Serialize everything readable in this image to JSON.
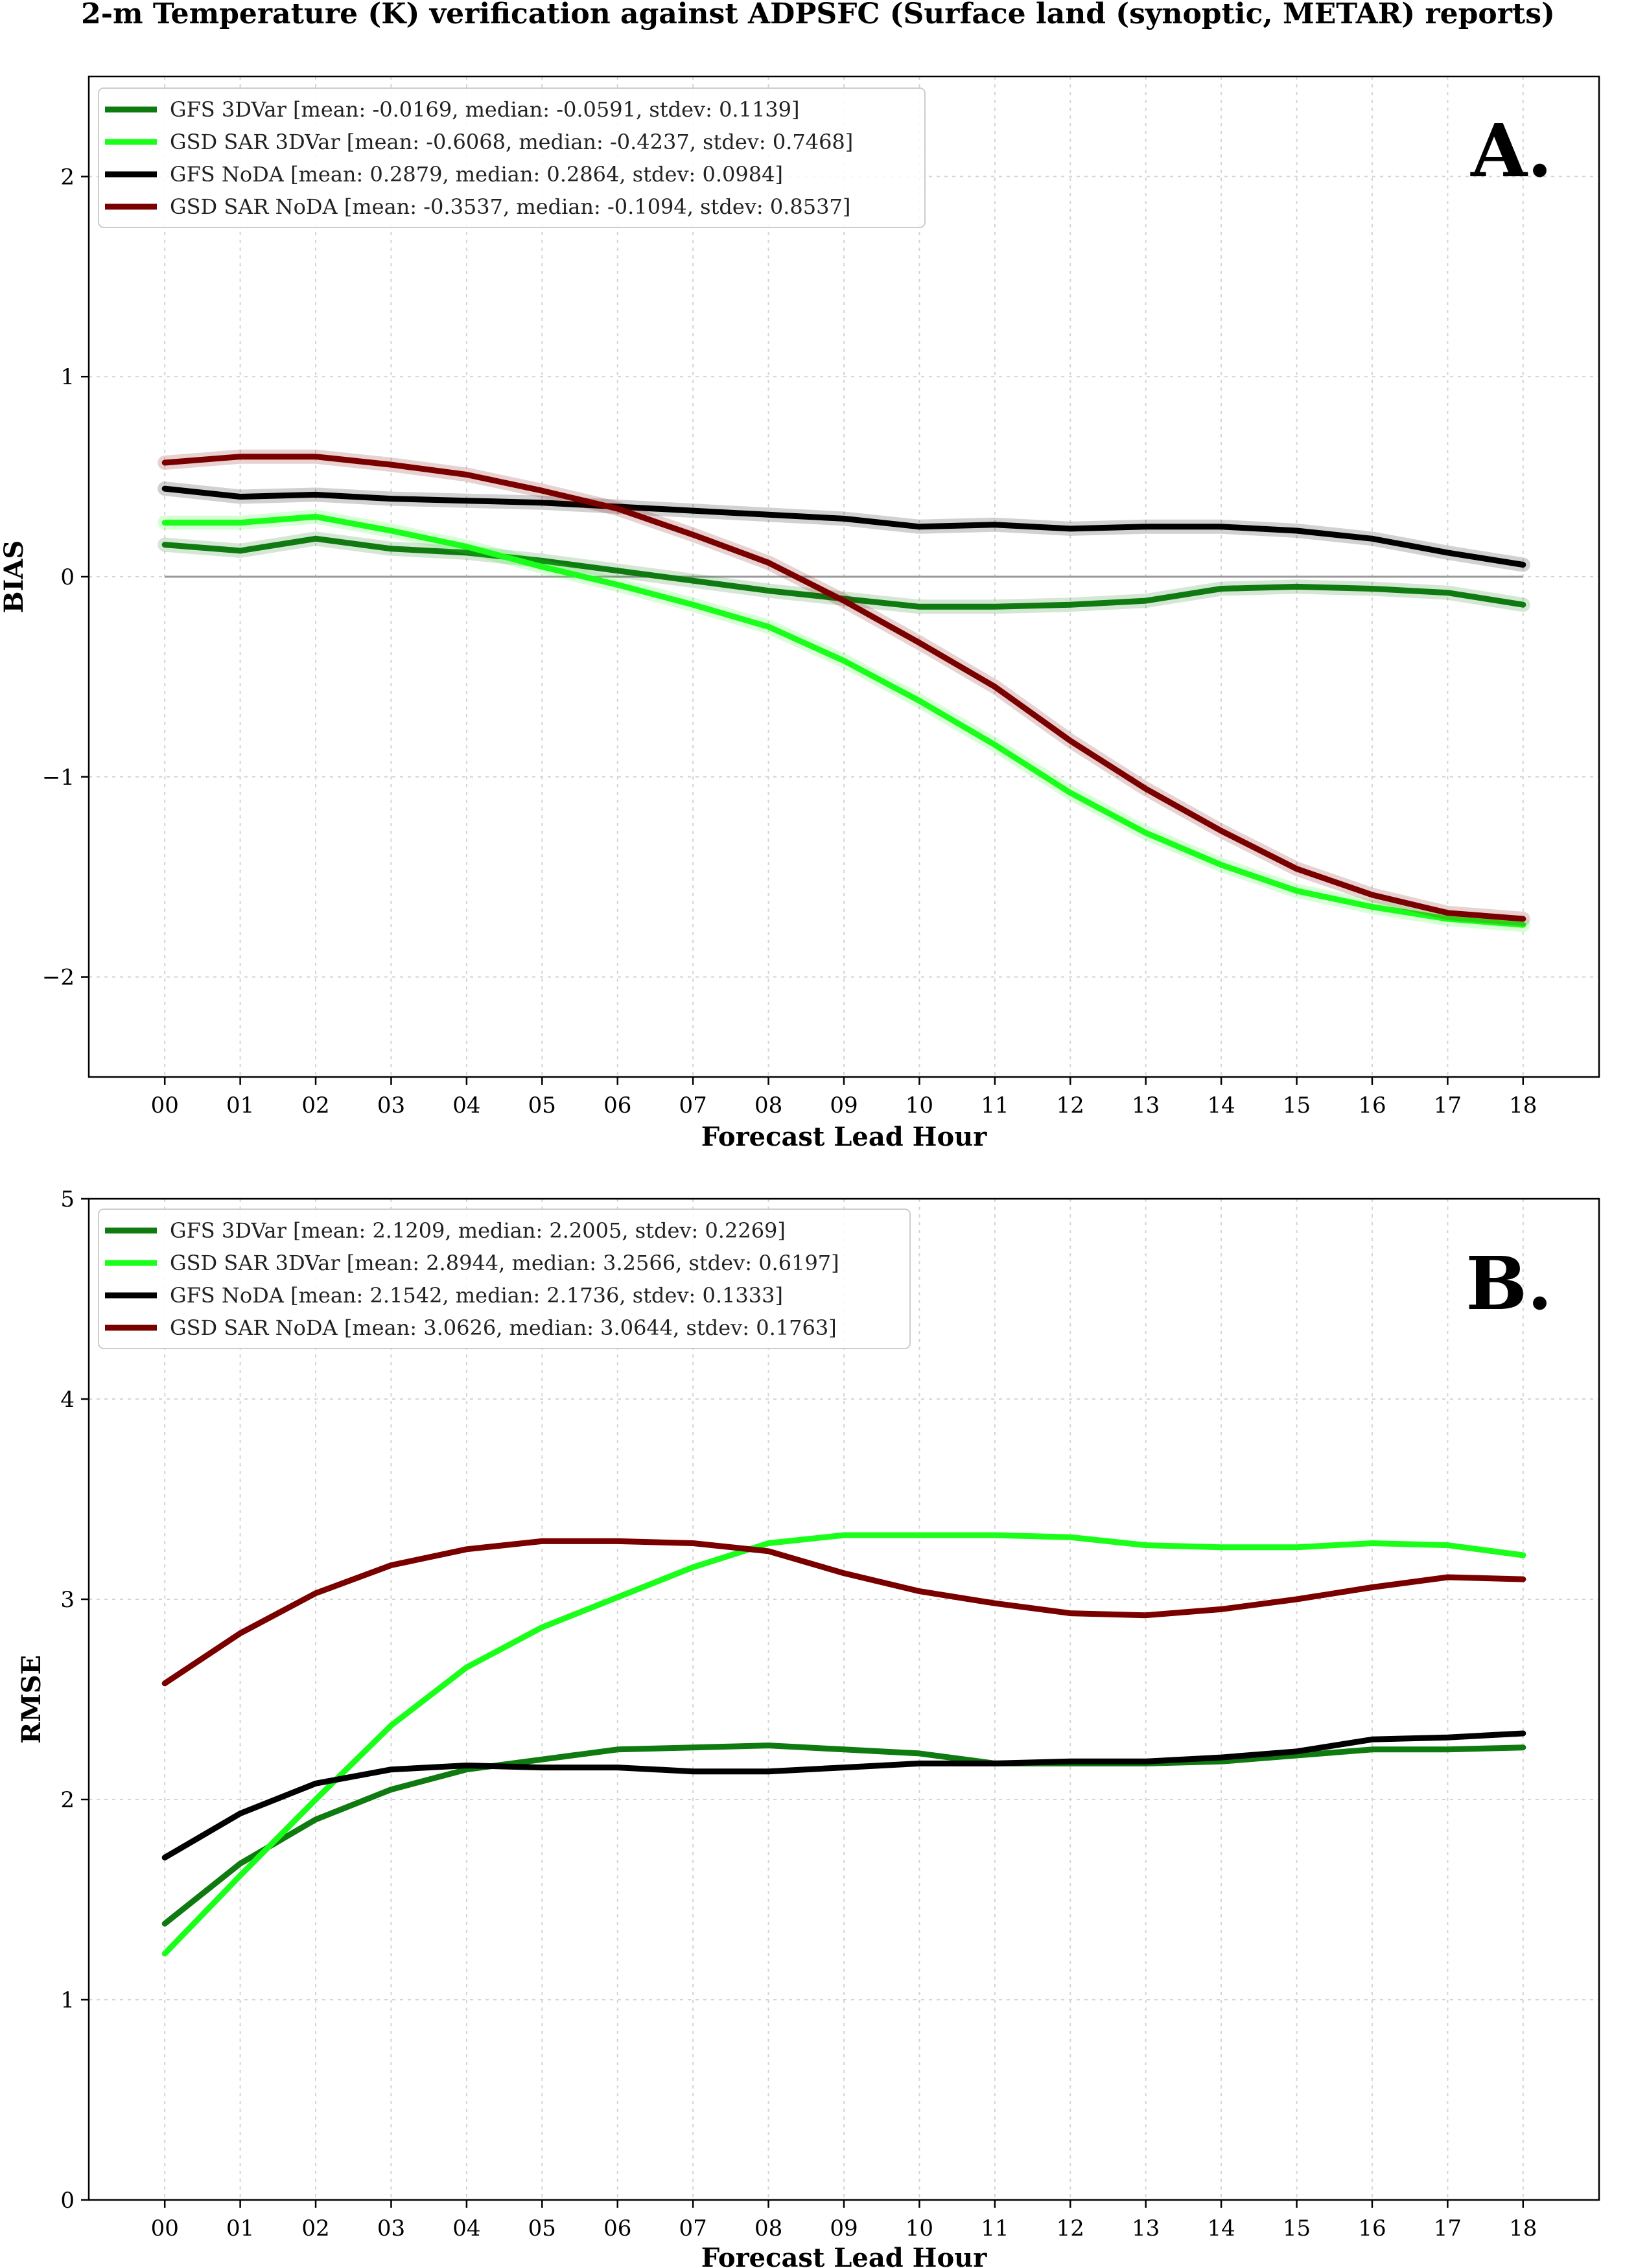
{
  "title": "2-m Temperature (K) verification against ADPSFC (Surface land (synoptic, METAR) reports)",
  "chart_data": [
    {
      "type": "line",
      "panel_label": "A.",
      "xlabel": "Forecast Lead Hour",
      "ylabel": "BIAS",
      "categories": [
        "00",
        "01",
        "02",
        "03",
        "04",
        "05",
        "06",
        "07",
        "08",
        "09",
        "10",
        "11",
        "12",
        "13",
        "14",
        "15",
        "16",
        "17",
        "18"
      ],
      "ylim": [
        -2.5,
        2.5
      ],
      "yticks": [
        2,
        1,
        0,
        -1,
        -2
      ],
      "ytick_labels": [
        "2",
        "1",
        "0",
        "−1",
        "−2"
      ],
      "grid": true,
      "zero_line": true,
      "legend_position": "top-left",
      "series": [
        {
          "name": "GFS 3DVar [mean: -0.0169, median: -0.0591, stdev: 0.1139]",
          "color": "#0f7a0f",
          "values": [
            0.16,
            0.13,
            0.19,
            0.14,
            0.12,
            0.08,
            0.03,
            -0.02,
            -0.07,
            -0.11,
            -0.15,
            -0.15,
            -0.14,
            -0.12,
            -0.06,
            -0.05,
            -0.06,
            -0.08,
            -0.14
          ]
        },
        {
          "name": "GSD SAR 3DVar [mean: -0.6068, median: -0.4237, stdev: 0.7468]",
          "color": "#19ff19",
          "values": [
            0.27,
            0.27,
            0.3,
            0.23,
            0.15,
            0.05,
            -0.04,
            -0.14,
            -0.25,
            -0.42,
            -0.62,
            -0.84,
            -1.08,
            -1.28,
            -1.44,
            -1.57,
            -1.65,
            -1.71,
            -1.74
          ]
        },
        {
          "name": "GFS NoDA [mean: 0.2879, median: 0.2864, stdev: 0.0984]",
          "color": "#000000",
          "values": [
            0.44,
            0.4,
            0.41,
            0.39,
            0.38,
            0.37,
            0.35,
            0.33,
            0.31,
            0.29,
            0.25,
            0.26,
            0.24,
            0.25,
            0.25,
            0.23,
            0.19,
            0.12,
            0.06
          ]
        },
        {
          "name": "GSD SAR NoDA [mean: -0.3537, median: -0.1094, stdev: 0.8537]",
          "color": "#7a0000",
          "values": [
            0.57,
            0.6,
            0.6,
            0.56,
            0.51,
            0.43,
            0.34,
            0.21,
            0.07,
            -0.12,
            -0.33,
            -0.55,
            -0.82,
            -1.06,
            -1.27,
            -1.46,
            -1.59,
            -1.68,
            -1.71
          ]
        }
      ]
    },
    {
      "type": "line",
      "panel_label": "B.",
      "xlabel": "Forecast Lead Hour",
      "ylabel": "RMSE",
      "categories": [
        "00",
        "01",
        "02",
        "03",
        "04",
        "05",
        "06",
        "07",
        "08",
        "09",
        "10",
        "11",
        "12",
        "13",
        "14",
        "15",
        "16",
        "17",
        "18"
      ],
      "ylim": [
        0,
        5
      ],
      "yticks": [
        5,
        4,
        3,
        2,
        1,
        0
      ],
      "ytick_labels": [
        "5",
        "4",
        "3",
        "2",
        "1",
        "0"
      ],
      "grid": true,
      "zero_line": false,
      "legend_position": "top-left",
      "series": [
        {
          "name": "GFS 3DVar [mean: 2.1209, median: 2.2005, stdev: 0.2269]",
          "color": "#0f7a0f",
          "values": [
            1.38,
            1.68,
            1.9,
            2.05,
            2.15,
            2.2,
            2.25,
            2.26,
            2.27,
            2.25,
            2.23,
            2.18,
            2.18,
            2.18,
            2.19,
            2.22,
            2.25,
            2.25,
            2.26
          ]
        },
        {
          "name": "GSD SAR 3DVar [mean: 2.8944, median: 3.2566, stdev: 0.6197]",
          "color": "#19ff19",
          "values": [
            1.23,
            1.62,
            2.0,
            2.37,
            2.66,
            2.86,
            3.01,
            3.16,
            3.28,
            3.32,
            3.32,
            3.32,
            3.31,
            3.27,
            3.26,
            3.26,
            3.28,
            3.27,
            3.22
          ]
        },
        {
          "name": "GFS NoDA [mean: 2.1542, median: 2.1736, stdev: 0.1333]",
          "color": "#000000",
          "values": [
            1.71,
            1.93,
            2.08,
            2.15,
            2.17,
            2.16,
            2.16,
            2.14,
            2.14,
            2.16,
            2.18,
            2.18,
            2.19,
            2.19,
            2.21,
            2.24,
            2.3,
            2.31,
            2.33
          ]
        },
        {
          "name": "GSD SAR NoDA [mean: 3.0626, median: 3.0644, stdev: 0.1763]",
          "color": "#7a0000",
          "values": [
            2.58,
            2.83,
            3.03,
            3.17,
            3.25,
            3.29,
            3.29,
            3.28,
            3.24,
            3.13,
            3.04,
            2.98,
            2.93,
            2.92,
            2.95,
            3.0,
            3.06,
            3.11,
            3.1
          ]
        }
      ]
    }
  ]
}
